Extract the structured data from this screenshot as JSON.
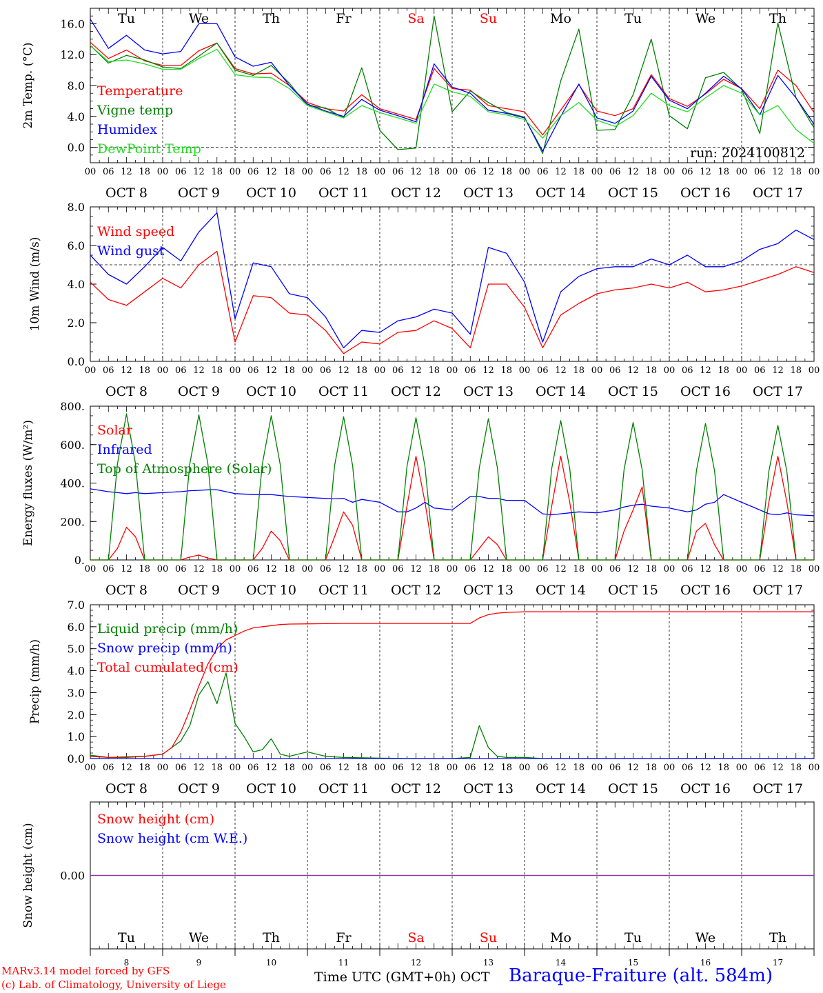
{
  "run_label": "run: 2024100812",
  "colors": {
    "red": "#ff0000",
    "green": "#008000",
    "blue": "#0000ff",
    "lightgreen": "#22dd22",
    "purple": "#8b3aa0",
    "black": "#000000"
  },
  "days": {
    "names": [
      "Tu",
      "We",
      "Th",
      "Fr",
      "Sa",
      "Su",
      "Mo",
      "Tu",
      "We",
      "Th"
    ],
    "weekend": [
      false,
      false,
      false,
      false,
      true,
      true,
      false,
      false,
      false,
      false
    ],
    "dates": [
      "OCT  8",
      "OCT  9",
      "OCT 10",
      "OCT 11",
      "OCT 12",
      "OCT 13",
      "OCT 14",
      "OCT 15",
      "OCT 16",
      "OCT 17"
    ],
    "numbers": [
      "8",
      "9",
      "10",
      "11",
      "12",
      "13",
      "14",
      "15",
      "16",
      "17"
    ],
    "hour_ticks": [
      "00",
      "06",
      "12",
      "18"
    ],
    "final_tick": "00"
  },
  "footer": {
    "model": "MARv3.14 model forced by GFS",
    "lab": "(c) Lab. of Climatology, University of Liege",
    "time_label": "Time UTC (GMT+0h) OCT",
    "station": "Baraque-Fraiture (alt. 584m)"
  },
  "chart_data": [
    {
      "type": "line",
      "ylabel": "2m Temp. (°C)",
      "ylim": [
        -2,
        18
      ],
      "yticks": [
        0,
        4,
        8,
        12,
        16
      ],
      "ytick_labels": [
        "0.0",
        "4.0",
        "8.0",
        "12.0",
        "16.0"
      ],
      "x_unit": "hours since Oct 8 00 UTC",
      "x": [
        0,
        6,
        12,
        18,
        24,
        30,
        36,
        42,
        48,
        54,
        60,
        66,
        72,
        78,
        84,
        90,
        96,
        102,
        108,
        114,
        120,
        126,
        132,
        138,
        144,
        150,
        156,
        162,
        168,
        174,
        180,
        186,
        192,
        198,
        204,
        210,
        216,
        222,
        228,
        234,
        240
      ],
      "series": [
        {
          "name": "Temperature",
          "color": "#ff0000",
          "values": [
            13.6,
            11.5,
            12.6,
            11.2,
            10.6,
            10.6,
            12.5,
            13.5,
            10.2,
            9.5,
            9.6,
            8.0,
            5.8,
            5.0,
            4.7,
            6.8,
            5.0,
            4.3,
            3.6,
            10.2,
            7.6,
            7.4,
            5.4,
            5.0,
            4.6,
            1.6,
            4.8,
            8.1,
            4.7,
            4.1,
            5.0,
            9.4,
            6.3,
            5.3,
            6.9,
            8.8,
            7.6,
            5.0,
            10.0,
            8.0,
            4.5
          ]
        },
        {
          "name": "Vigne temp",
          "color": "#008000",
          "values": [
            13.2,
            10.9,
            11.9,
            11.3,
            10.4,
            10.2,
            11.8,
            13.5,
            10.0,
            9.3,
            10.6,
            8.3,
            5.4,
            5.1,
            3.8,
            10.3,
            2.2,
            -0.3,
            -0.1,
            17.0,
            4.6,
            7.3,
            5.8,
            4.5,
            3.9,
            -0.8,
            8.6,
            15.3,
            2.2,
            2.3,
            6.8,
            14.0,
            4.1,
            2.4,
            9.0,
            9.7,
            7.5,
            1.8,
            16.1,
            6.4,
            2.5
          ]
        },
        {
          "name": "Humidex",
          "color": "#0000ff",
          "values": [
            16.6,
            12.8,
            14.5,
            12.6,
            12.1,
            12.4,
            16.0,
            16.0,
            11.7,
            10.5,
            11.0,
            8.0,
            5.6,
            4.7,
            4.0,
            6.2,
            4.8,
            4.1,
            3.3,
            10.8,
            7.8,
            7.0,
            4.8,
            4.4,
            3.8,
            -0.5,
            4.0,
            8.2,
            3.8,
            3.1,
            4.7,
            9.2,
            6.1,
            5.0,
            7.0,
            9.2,
            7.6,
            4.2,
            9.3,
            6.4,
            3.0
          ]
        },
        {
          "name": "DewPoint Temp",
          "color": "#22dd22",
          "values": [
            13.2,
            11.1,
            11.3,
            10.8,
            10.1,
            10.1,
            11.5,
            12.7,
            9.4,
            9.1,
            9.0,
            7.6,
            5.4,
            4.6,
            3.8,
            5.4,
            4.5,
            3.8,
            3.1,
            8.2,
            7.2,
            6.6,
            4.6,
            4.2,
            3.6,
            1.2,
            4.1,
            5.8,
            3.5,
            2.7,
            4.1,
            7.0,
            5.4,
            4.6,
            6.4,
            8.0,
            7.0,
            4.2,
            5.4,
            2.3,
            0.5
          ]
        }
      ]
    },
    {
      "type": "line",
      "ylabel": "10m Wind (m/s)",
      "ylim": [
        0,
        8
      ],
      "yticks": [
        0,
        2,
        4,
        6,
        8
      ],
      "ytick_labels": [
        "0.0",
        "2.0",
        "4.0",
        "6.0",
        "8.0"
      ],
      "reference_line": 5.0,
      "x_unit": "hours since Oct 8 00 UTC",
      "x": [
        0,
        6,
        12,
        18,
        24,
        30,
        36,
        42,
        48,
        54,
        60,
        66,
        72,
        78,
        84,
        90,
        96,
        102,
        108,
        114,
        120,
        126,
        132,
        138,
        144,
        150,
        156,
        162,
        168,
        174,
        180,
        186,
        192,
        198,
        204,
        210,
        216,
        222,
        228,
        234,
        240
      ],
      "series": [
        {
          "name": "Wind speed",
          "color": "#ff0000",
          "values": [
            4.1,
            3.2,
            2.9,
            3.6,
            4.3,
            3.8,
            5.0,
            5.7,
            1.0,
            3.4,
            3.3,
            2.5,
            2.4,
            1.6,
            0.4,
            1.0,
            0.9,
            1.5,
            1.6,
            2.1,
            1.7,
            0.7,
            4.0,
            4.0,
            2.8,
            0.7,
            2.4,
            3.0,
            3.5,
            3.7,
            3.8,
            4.0,
            3.8,
            4.1,
            3.6,
            3.7,
            3.9,
            4.2,
            4.5,
            4.9,
            4.6
          ]
        },
        {
          "name": "Wind gust",
          "color": "#0000ff",
          "values": [
            5.5,
            4.5,
            4.0,
            4.9,
            5.9,
            5.2,
            6.7,
            7.7,
            2.2,
            5.1,
            4.9,
            3.5,
            3.3,
            2.3,
            0.7,
            1.6,
            1.5,
            2.1,
            2.3,
            2.7,
            2.5,
            1.4,
            5.9,
            5.6,
            4.1,
            1.0,
            3.6,
            4.4,
            4.8,
            4.9,
            4.9,
            5.3,
            5.0,
            5.5,
            4.9,
            4.9,
            5.2,
            5.8,
            6.1,
            6.8,
            6.3
          ]
        }
      ]
    },
    {
      "type": "line",
      "ylabel": "Energy fluxes (W/m²)",
      "ylim": [
        0,
        800
      ],
      "yticks": [
        0,
        200,
        400,
        600,
        800
      ],
      "ytick_labels": [
        "0.",
        "200.",
        "400.",
        "600.",
        "800."
      ],
      "x_unit": "hours since Oct 8 00 UTC",
      "x": [
        0,
        6,
        9,
        12,
        15,
        18,
        24,
        30,
        33,
        36,
        39,
        42,
        48,
        54,
        57,
        60,
        63,
        66,
        72,
        78,
        81,
        84,
        87,
        90,
        96,
        102,
        105,
        108,
        111,
        114,
        120,
        126,
        129,
        132,
        135,
        138,
        144,
        150,
        153,
        156,
        159,
        162,
        168,
        174,
        177,
        180,
        183,
        186,
        192,
        198,
        201,
        204,
        207,
        210,
        216,
        222,
        225,
        228,
        231,
        234,
        240
      ],
      "series": [
        {
          "name": "Solar",
          "color": "#ff0000",
          "values": [
            0,
            0,
            60,
            170,
            120,
            0,
            0,
            0,
            15,
            25,
            10,
            0,
            0,
            0,
            60,
            150,
            100,
            0,
            0,
            0,
            120,
            250,
            180,
            0,
            0,
            0,
            280,
            540,
            300,
            0,
            0,
            0,
            60,
            120,
            80,
            0,
            0,
            0,
            280,
            540,
            300,
            0,
            0,
            0,
            150,
            260,
            380,
            0,
            0,
            0,
            150,
            190,
            80,
            0,
            0,
            0,
            300,
            540,
            300,
            0,
            0
          ]
        },
        {
          "name": "Infrared",
          "color": "#0000ff",
          "values": [
            370,
            355,
            350,
            345,
            350,
            345,
            350,
            355,
            360,
            362,
            365,
            365,
            345,
            340,
            340,
            340,
            335,
            330,
            325,
            320,
            318,
            320,
            300,
            315,
            300,
            250,
            250,
            270,
            300,
            270,
            260,
            330,
            330,
            320,
            320,
            310,
            310,
            240,
            235,
            240,
            245,
            250,
            245,
            260,
            275,
            285,
            290,
            280,
            270,
            250,
            260,
            290,
            300,
            340,
            300,
            260,
            240,
            235,
            245,
            235,
            230
          ]
        },
        {
          "name": "Top of Atmosphere (Solar)",
          "color": "#008000",
          "values": [
            0,
            0,
            500,
            760,
            500,
            0,
            0,
            0,
            500,
            755,
            500,
            0,
            0,
            0,
            495,
            750,
            495,
            0,
            0,
            0,
            490,
            745,
            490,
            0,
            0,
            0,
            485,
            740,
            485,
            0,
            0,
            0,
            480,
            735,
            480,
            0,
            0,
            0,
            475,
            725,
            475,
            0,
            0,
            0,
            470,
            715,
            470,
            0,
            0,
            0,
            465,
            710,
            465,
            0,
            0,
            0,
            460,
            700,
            460,
            0,
            0
          ]
        }
      ]
    },
    {
      "type": "line",
      "ylabel": "Precip (mm/h)",
      "ylim": [
        0,
        7
      ],
      "yticks": [
        0,
        1,
        2,
        3,
        4,
        5,
        6,
        7
      ],
      "ytick_labels": [
        "0.0",
        "1.0",
        "2.0",
        "3.0",
        "4.0",
        "5.0",
        "6.0",
        "7.0"
      ],
      "x_unit": "hours since Oct 8 00 UTC",
      "x": [
        0,
        6,
        12,
        18,
        24,
        27,
        30,
        33,
        36,
        39,
        42,
        45,
        48,
        51,
        54,
        57,
        60,
        63,
        66,
        72,
        78,
        84,
        96,
        108,
        120,
        126,
        129,
        132,
        135,
        138,
        144,
        150,
        162,
        174,
        186,
        198,
        210,
        222,
        234,
        240
      ],
      "series": [
        {
          "name": "Liquid precip (mm/h)",
          "color": "#008000",
          "values": [
            0.15,
            0.05,
            0.05,
            0.1,
            0.2,
            0.5,
            0.8,
            1.5,
            2.9,
            3.5,
            2.5,
            3.9,
            1.6,
            1.0,
            0.3,
            0.4,
            0.9,
            0.2,
            0.1,
            0.3,
            0.1,
            0.05,
            0.02,
            0,
            0,
            0.05,
            1.5,
            0.5,
            0.1,
            0.05,
            0.05,
            0,
            0,
            0,
            0,
            0,
            0,
            0,
            0,
            0
          ]
        },
        {
          "name": "Snow precip (mm/h)",
          "color": "#0000ff",
          "values": [
            0,
            0,
            0,
            0,
            0,
            0,
            0,
            0,
            0,
            0,
            0,
            0,
            0,
            0,
            0,
            0,
            0,
            0,
            0,
            0,
            0,
            0,
            0,
            0,
            0,
            0,
            0,
            0,
            0,
            0,
            0,
            0,
            0,
            0,
            0,
            0,
            0,
            0,
            0,
            0
          ]
        },
        {
          "name": "Total cumulated (cm)",
          "color": "#ff0000",
          "values": [
            0.1,
            0.05,
            0.08,
            0.1,
            0.2,
            0.5,
            1.2,
            2.2,
            3.3,
            4.3,
            5.0,
            5.4,
            5.6,
            5.8,
            5.95,
            6.0,
            6.05,
            6.1,
            6.12,
            6.13,
            6.14,
            6.15,
            6.15,
            6.15,
            6.15,
            6.15,
            6.4,
            6.55,
            6.62,
            6.65,
            6.68,
            6.68,
            6.68,
            6.68,
            6.68,
            6.68,
            6.68,
            6.68,
            6.68,
            6.68
          ]
        }
      ]
    },
    {
      "type": "line",
      "ylabel": "Snow height (cm)",
      "ytick_labels": [
        "0.00"
      ],
      "yticks": [
        0
      ],
      "x_unit": "hours since Oct 8 00 UTC",
      "x": [
        0,
        240
      ],
      "series": [
        {
          "name": "Snow height (cm)",
          "color": "#ff0000",
          "values": [
            0,
            0
          ]
        },
        {
          "name": "Snow height (cm W.E.)",
          "color": "#0000ff",
          "values": [
            0,
            0
          ]
        }
      ]
    }
  ]
}
